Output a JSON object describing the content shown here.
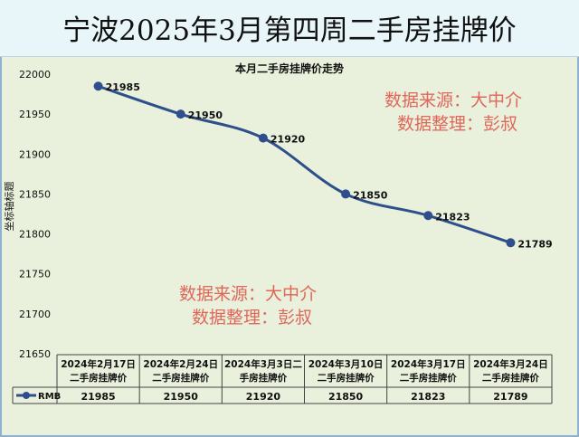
{
  "header": {
    "title": "宁波2025年3月第四周二手房挂牌价"
  },
  "watermarks": [
    {
      "lines": [
        "数据来源：大中介",
        "数据整理：彭叔"
      ]
    },
    {
      "lines": [
        "数据来源：大中介",
        "数据整理：彭叔"
      ]
    }
  ],
  "chart_data": {
    "type": "line",
    "title": "本月二手房挂牌价走势",
    "ylabel": "坐标轴标题",
    "xlabel": "",
    "categories": [
      [
        "2024年2月17日",
        "二手房挂牌价"
      ],
      [
        "2024年2月24日",
        "二手房挂牌价"
      ],
      [
        "2024年3月3日二",
        "手房挂牌价"
      ],
      [
        "2024年3月10日",
        "二手房挂牌价"
      ],
      [
        "2024年3月17日",
        "二手房挂牌价"
      ],
      [
        "2024年3月24日",
        "二手房挂牌价"
      ]
    ],
    "series": [
      {
        "name": "RMB",
        "values": [
          21985,
          21950,
          21920,
          21850,
          21823,
          21789
        ],
        "color": "#2e4f8c"
      }
    ],
    "ylim": [
      21650,
      22000
    ],
    "yticks": [
      22000,
      21950,
      21900,
      21850,
      21800,
      21750,
      21700,
      21650
    ],
    "grid": false,
    "legend": "data-table",
    "background": "#e9f0db"
  }
}
